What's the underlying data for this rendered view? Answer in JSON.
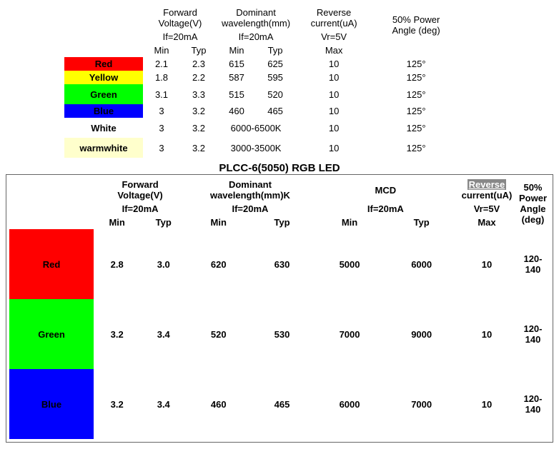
{
  "top": {
    "headers": {
      "fv": "Forward\nVoltage(V)",
      "dw": "Dominant\nwavelength(mm)",
      "rc": "Reverse\ncurrent(uA)",
      "pa": "50% Power\nAngle (deg)",
      "cond_if": "If=20mA",
      "cond_vr": "Vr=5V",
      "min": "Min",
      "typ": "Typ",
      "max": "Max"
    },
    "rows": [
      {
        "label": "Red",
        "class": "c-red",
        "fv_min": "2.1",
        "fv_typ": "2.3",
        "dw_min": "615",
        "dw_typ": "625",
        "rc": "10",
        "pa": "125°"
      },
      {
        "label": "Yellow",
        "class": "c-yellow",
        "fv_min": "1.8",
        "fv_typ": "2.2",
        "dw_min": "587",
        "dw_typ": "595",
        "rc": "10",
        "pa": "125°"
      },
      {
        "label": "Green",
        "class": "c-green",
        "fv_min": "3.1",
        "fv_typ": "3.3",
        "dw_min": "515",
        "dw_typ": "520",
        "rc": "10",
        "pa": "125°",
        "tall": true
      },
      {
        "label": "Blue",
        "class": "c-blue",
        "fv_min": "3",
        "fv_typ": "3.2",
        "dw_min": "460",
        "dw_typ": "465",
        "rc": "10",
        "pa": "125°"
      },
      {
        "label": "White",
        "class": "c-white",
        "fv_min": "3",
        "fv_typ": "3.2",
        "dw_span": "6000-6500K",
        "rc": "10",
        "pa": "125°",
        "tall": true
      },
      {
        "label": "warmwhite",
        "class": "c-wwhite",
        "fv_min": "3",
        "fv_typ": "3.2",
        "dw_span": "3000-3500K",
        "rc": "10",
        "pa": "125°",
        "tall": true
      }
    ]
  },
  "title2": "PLCC-6(5050) RGB LED",
  "bottom": {
    "headers": {
      "fv": "Forward\nVoltage(V)",
      "dw": "Dominant\nwavelength(mm)K",
      "mcd": "MCD",
      "rc_word": "Reverse",
      "rc_rest": "current(uA)",
      "pa": "50%\nPower\nAngle\n(deg)",
      "cond_if": "If=20mA",
      "cond_vr": "Vr=5V",
      "min": "Min",
      "typ": "Typ",
      "max": "Max"
    },
    "rows": [
      {
        "label": "Red",
        "class": "c-red",
        "fv_min": "2.8",
        "fv_typ": "3.0",
        "dw_min": "620",
        "dw_typ": "630",
        "mcd_min": "5000",
        "mcd_typ": "6000",
        "rc": "10",
        "pa": "120-\n140"
      },
      {
        "label": "Green",
        "class": "c-green",
        "fv_min": "3.2",
        "fv_typ": "3.4",
        "dw_min": "520",
        "dw_typ": "530",
        "mcd_min": "7000",
        "mcd_typ": "9000",
        "rc": "10",
        "pa": "120-\n140"
      },
      {
        "label": "Blue",
        "class": "c-blue",
        "fv_min": "3.2",
        "fv_typ": "3.4",
        "dw_min": "460",
        "dw_typ": "465",
        "mcd_min": "6000",
        "mcd_typ": "7000",
        "rc": "10",
        "pa": "120-\n140"
      }
    ]
  },
  "layout": {
    "top_col_w": {
      "swatch": 110,
      "num": 52,
      "dw": 52,
      "rc": 110,
      "pa": 120
    },
    "bottom_col_w": {
      "swatch": 118,
      "num": 55,
      "rc": 82,
      "pa": 46
    }
  }
}
